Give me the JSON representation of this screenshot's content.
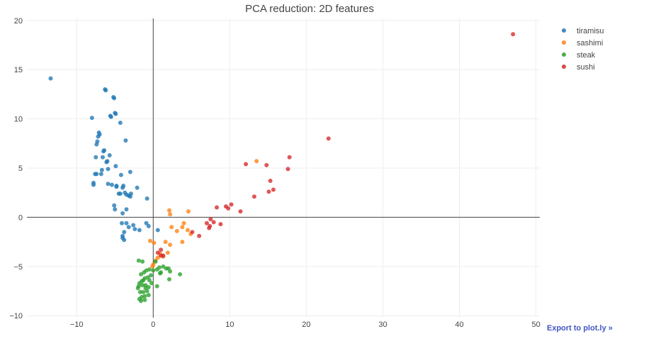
{
  "export_label": "Export to plot.ly »",
  "chart_data": {
    "type": "scatter",
    "title": "PCA reduction: 2D features",
    "xlabel": "",
    "ylabel": "",
    "xlim": [
      -16.5,
      50.5
    ],
    "ylim": [
      -10.2,
      20.2
    ],
    "x_ticks": [
      -10,
      0,
      10,
      20,
      30,
      40,
      50
    ],
    "y_ticks": [
      -10,
      -5,
      0,
      5,
      10,
      15,
      20
    ],
    "x_tick_labels": [
      "−10",
      "0",
      "10",
      "20",
      "30",
      "40",
      "50"
    ],
    "y_tick_labels": [
      "−10",
      "−5",
      "0",
      "5",
      "10",
      "15",
      "20"
    ],
    "grid": true,
    "zero_lines": true,
    "legend_position": "top-right",
    "series": [
      {
        "name": "tiramisu",
        "color": "#1f77b4",
        "x": [
          -13.4,
          -6.3,
          -6.2,
          -5.2,
          -5.1,
          -5.0,
          -4.9,
          -5.6,
          -5.5,
          -4.3,
          -8.0,
          -7.1,
          -7.0,
          -7.2,
          -7.3,
          -3.6,
          -7.4,
          -6.4,
          -6.5,
          -5.7,
          -7.5,
          -6.6,
          -6.0,
          -6.1,
          -4.9,
          -3.0,
          -7.4,
          -7.6,
          -6.8,
          -4.2,
          -7.8,
          -7.8,
          -5.9,
          -5.4,
          -4.8,
          -4.8,
          -3.9,
          -4.0,
          -2.1,
          -6.7,
          -5.9,
          -2.9,
          -3.2,
          -3.0,
          -4.3,
          -4.5,
          -3.7,
          -3.5,
          -0.8,
          -5.1,
          -5.0,
          -3.5,
          -4.0,
          -4.1,
          -3.5,
          -0.9,
          -2.6,
          -3.2,
          -2.4,
          -1.8,
          -3.8,
          -4.0,
          -0.6,
          0.6,
          -4.0,
          -3.8
        ],
        "y": [
          14.1,
          13.0,
          12.9,
          12.2,
          12.1,
          10.6,
          10.5,
          10.3,
          10.2,
          9.6,
          10.1,
          8.6,
          8.4,
          8.2,
          7.7,
          7.8,
          7.4,
          6.8,
          6.7,
          6.3,
          6.1,
          6.1,
          5.7,
          5.6,
          5.2,
          4.6,
          4.4,
          4.4,
          4.4,
          4.3,
          3.5,
          3.3,
          3.4,
          3.3,
          3.2,
          3.1,
          3.2,
          3.0,
          3.0,
          4.8,
          4.9,
          2.4,
          2.2,
          2.1,
          2.4,
          2.4,
          2.5,
          2.3,
          1.9,
          1.2,
          0.8,
          0.8,
          0.4,
          -0.6,
          -0.6,
          -0.6,
          -0.8,
          -1.0,
          -1.2,
          -1.3,
          -1.5,
          -1.9,
          -0.9,
          -1.3,
          -2.1,
          -2.3
        ]
      },
      {
        "name": "sashimi",
        "color": "#ff7f0e",
        "x": [
          13.5,
          4.6,
          2.1,
          2.2,
          4.0,
          3.8,
          2.4,
          4.5,
          3.1,
          4.9,
          1.6,
          3.8,
          -0.4,
          0.1,
          2.2,
          1.9,
          0.9,
          1.3,
          0.6,
          0.3,
          0.0,
          -0.1
        ],
        "y": [
          5.7,
          0.6,
          0.7,
          0.3,
          -0.6,
          -1.0,
          -1.0,
          -1.3,
          -1.4,
          -1.7,
          -2.5,
          -2.5,
          -2.4,
          -2.6,
          -2.8,
          -3.6,
          -3.7,
          -4.0,
          -4.1,
          -4.4,
          -4.8,
          -5.0
        ]
      },
      {
        "name": "steak",
        "color": "#2ca02c",
        "x": [
          -1.9,
          -1.4,
          0.3,
          1.3,
          0.8,
          1.7,
          2.0,
          2.2,
          1.0,
          0.9,
          0.5,
          0.0,
          -0.5,
          -0.9,
          -1.2,
          -1.6,
          3.5,
          -0.3,
          -0.7,
          -1.1,
          -1.3,
          -1.5,
          -1.8,
          -0.5,
          -1.0,
          2.1,
          -0.2,
          -0.6,
          0.5,
          -1.4,
          -1.0,
          -1.9,
          -2.0,
          -1.7,
          -1.3,
          -0.8,
          -0.6,
          -1.1,
          -1.5,
          -1.8,
          -1.6,
          -1.1
        ],
        "y": [
          -4.4,
          -4.5,
          -4.5,
          -5.0,
          -5.1,
          -5.2,
          -5.2,
          -5.5,
          -5.6,
          -5.7,
          -5.3,
          -5.4,
          -5.3,
          -5.4,
          -5.6,
          -5.8,
          -5.8,
          -5.9,
          -6.1,
          -6.2,
          -6.4,
          -6.5,
          -6.7,
          -6.4,
          -6.9,
          -6.3,
          -6.7,
          -7.1,
          -7.0,
          -6.9,
          -7.2,
          -7.0,
          -7.2,
          -7.6,
          -7.6,
          -7.5,
          -7.9,
          -8.0,
          -8.1,
          -8.3,
          -8.5,
          -8.4
        ]
      },
      {
        "name": "sushi",
        "color": "#d62728",
        "x": [
          47.0,
          22.9,
          17.8,
          12.1,
          14.8,
          17.6,
          15.3,
          15.7,
          15.1,
          13.2,
          10.2,
          9.5,
          8.3,
          9.8,
          11.4,
          7.5,
          7.9,
          7.0,
          8.8,
          7.4,
          7.3,
          6.0,
          5.1,
          1.0,
          0.6,
          1.0,
          1.3
        ],
        "y": [
          18.6,
          8.0,
          6.1,
          5.4,
          5.3,
          4.9,
          3.7,
          2.8,
          2.6,
          2.1,
          1.3,
          1.1,
          1.0,
          0.9,
          0.6,
          -0.2,
          -0.5,
          -0.6,
          -0.7,
          -0.9,
          -1.1,
          -1.9,
          -1.5,
          -3.3,
          -3.6,
          -3.9,
          -3.9
        ]
      }
    ]
  }
}
